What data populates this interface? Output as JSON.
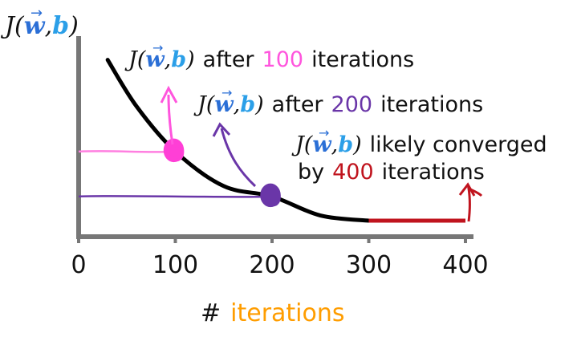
{
  "chart_data": {
    "type": "line",
    "title": "",
    "ylabel": {
      "func": "J",
      "open": "(",
      "w": "w",
      "arrow": "→",
      "comma": ",",
      "b": "b",
      "close": ")"
    },
    "xlabel": {
      "hash": "#",
      "word": "iterations"
    },
    "xlim": [
      0,
      400
    ],
    "x_ticks": [
      "0",
      "100",
      "200",
      "300",
      "400"
    ],
    "grid": false,
    "series": [
      {
        "x": [
          30,
          60,
          100,
          150,
          200,
          250,
          300
        ],
        "y": [
          0.93,
          0.66,
          0.4,
          0.2,
          0.14,
          0.03,
          0.0
        ],
        "color": "#000000"
      }
    ],
    "converged_segment": {
      "x": [
        300,
        400
      ],
      "y": 0.0,
      "color": "#c0141e"
    },
    "points": [
      {
        "x": 100,
        "y": 0.4,
        "color": "#ff3fd6"
      },
      {
        "x": 200,
        "y": 0.14,
        "color": "#6a36a8"
      }
    ],
    "guides": [
      {
        "x_end": 100,
        "y": 0.4,
        "color": "#ff7fe0"
      },
      {
        "x_end": 200,
        "y": 0.14,
        "color": "#6a36a8"
      }
    ],
    "annotations": [
      {
        "mid": "after",
        "num": "100",
        "tail": "iterations",
        "num_color": "#ff55dd"
      },
      {
        "mid": "after",
        "num": "200",
        "tail": "iterations",
        "num_color": "#6a36a8"
      },
      {
        "mid": "likely converged",
        "line2_pre": "by",
        "num": "400",
        "tail": "iterations",
        "num_color": "#c0141e"
      }
    ],
    "colors": {
      "axis": "#777777",
      "text": "#111111",
      "w": "#2b6fd6",
      "b": "#2b9fe8",
      "xlabel_word": "#ff9d00"
    }
  }
}
